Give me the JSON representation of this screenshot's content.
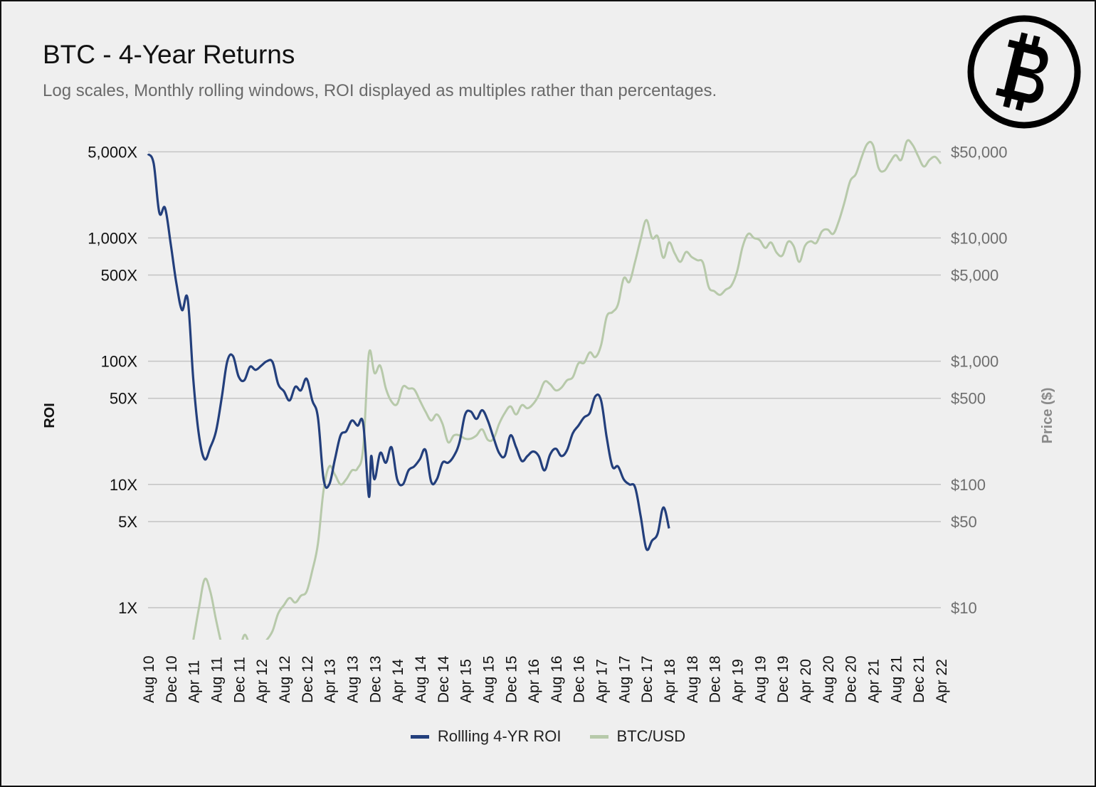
{
  "title": "BTC - 4-Year Returns",
  "subtitle": "Log scales, Monthly rolling windows, ROI displayed as multiples rather than percentages.",
  "logo_icon": "bitcoin-logo-icon",
  "chart_data": {
    "type": "line",
    "y_scale": "log",
    "y2_scale": "log",
    "ylabel": "ROI",
    "y2label": "Price ($)",
    "y_ticks": [
      {
        "v": 5000,
        "label": "5,000X"
      },
      {
        "v": 1000,
        "label": "1,000X"
      },
      {
        "v": 500,
        "label": "500X"
      },
      {
        "v": 100,
        "label": "100X"
      },
      {
        "v": 50,
        "label": "50X"
      },
      {
        "v": 10,
        "label": "10X"
      },
      {
        "v": 5,
        "label": "5X"
      },
      {
        "v": 1,
        "label": "1X"
      }
    ],
    "y2_ticks": [
      {
        "v": 50000,
        "label": "$50,000"
      },
      {
        "v": 10000,
        "label": "$10,000"
      },
      {
        "v": 5000,
        "label": "$5,000"
      },
      {
        "v": 1000,
        "label": "$1,000"
      },
      {
        "v": 500,
        "label": "$500"
      },
      {
        "v": 100,
        "label": "$100"
      },
      {
        "v": 50,
        "label": "$50"
      },
      {
        "v": 10,
        "label": "$10"
      }
    ],
    "x_ticks": [
      "Aug 10",
      "Dec 10",
      "Apr 11",
      "Aug 11",
      "Dec 11",
      "Apr 12",
      "Aug 12",
      "Dec 12",
      "Apr 13",
      "Aug 13",
      "Dec 13",
      "Apr 14",
      "Aug 14",
      "Dec 14",
      "Apr 15",
      "Aug 15",
      "Dec 15",
      "Apr 16",
      "Aug 16",
      "Dec 16",
      "Apr 17",
      "Aug 17",
      "Dec 17",
      "Apr 18",
      "Aug 18",
      "Dec 18",
      "Apr 19",
      "Aug 19",
      "Dec 19",
      "Apr 20",
      "Aug 20",
      "Dec 20",
      "Apr 21",
      "Aug 21",
      "Dec 21",
      "Apr 22"
    ],
    "grid": true,
    "legend_position": "bottom",
    "series": [
      {
        "name": "Rollling 4-YR ROI",
        "color": "#233f7c",
        "axis": "left",
        "points": [
          [
            "Aug 10",
            4800
          ],
          [
            "Sep 10",
            4000
          ],
          [
            "Oct 10",
            1600
          ],
          [
            "Nov 10",
            1750
          ],
          [
            "Dec 10",
            900
          ],
          [
            "Jan 11",
            430
          ],
          [
            "Feb 11",
            260
          ],
          [
            "Mar 11",
            320
          ],
          [
            "Apr 11",
            70
          ],
          [
            "May 11",
            25
          ],
          [
            "Jun 11",
            16
          ],
          [
            "Jul 11",
            20
          ],
          [
            "Aug 11",
            27
          ],
          [
            "Sep 11",
            50
          ],
          [
            "Oct 11",
            100
          ],
          [
            "Nov 11",
            110
          ],
          [
            "Dec 11",
            75
          ],
          [
            "Jan 12",
            70
          ],
          [
            "Feb 12",
            90
          ],
          [
            "Mar 12",
            85
          ],
          [
            "Apr 12",
            92
          ],
          [
            "May 12",
            100
          ],
          [
            "Jun 12",
            98
          ],
          [
            "Jul 12",
            65
          ],
          [
            "Aug 12",
            57
          ],
          [
            "Sep 12",
            48
          ],
          [
            "Oct 12",
            62
          ],
          [
            "Nov 12",
            58
          ],
          [
            "Dec 12",
            72
          ],
          [
            "Jan 13",
            48
          ],
          [
            "Feb 13",
            35
          ],
          [
            "Mar 13",
            11
          ],
          [
            "Apr 13",
            10
          ],
          [
            "May 13",
            16
          ],
          [
            "Jun 13",
            25
          ],
          [
            "Jul 13",
            27
          ],
          [
            "Aug 13",
            33
          ],
          [
            "Sep 13",
            30
          ],
          [
            "Oct 13",
            31
          ],
          [
            "Nov 13",
            8
          ],
          [
            "Nov 13b",
            17
          ],
          [
            "Dec 13",
            11
          ],
          [
            "Jan 14",
            18
          ],
          [
            "Feb 14",
            15
          ],
          [
            "Mar 14",
            20
          ],
          [
            "Apr 14",
            11
          ],
          [
            "May 14",
            10
          ],
          [
            "Jun 14",
            13
          ],
          [
            "Jul 14",
            14
          ],
          [
            "Aug 14",
            16
          ],
          [
            "Sep 14",
            19
          ],
          [
            "Oct 14",
            10.5
          ],
          [
            "Nov 14",
            11
          ],
          [
            "Dec 14",
            15
          ],
          [
            "Jan 15",
            15
          ],
          [
            "Feb 15",
            17
          ],
          [
            "Mar 15",
            22
          ],
          [
            "Apr 15",
            37
          ],
          [
            "May 15",
            39
          ],
          [
            "Jun 15",
            34
          ],
          [
            "Jul 15",
            40
          ],
          [
            "Aug 15",
            33
          ],
          [
            "Sep 15",
            24
          ],
          [
            "Oct 15",
            18
          ],
          [
            "Nov 15",
            17
          ],
          [
            "Dec 15",
            25
          ],
          [
            "Jan 16",
            20
          ],
          [
            "Feb 16",
            15.5
          ],
          [
            "Mar 16",
            17
          ],
          [
            "Apr 16",
            18.5
          ],
          [
            "May 16",
            17
          ],
          [
            "Jun 16",
            13
          ],
          [
            "Jul 16",
            17.5
          ],
          [
            "Aug 16",
            19.5
          ],
          [
            "Sep 16",
            17
          ],
          [
            "Oct 16",
            19
          ],
          [
            "Nov 16",
            26
          ],
          [
            "Dec 16",
            30
          ],
          [
            "Jan 17",
            35
          ],
          [
            "Feb 17",
            38
          ],
          [
            "Mar 17",
            52
          ],
          [
            "Apr 17",
            48
          ],
          [
            "May 17",
            24
          ],
          [
            "Jun 17",
            14
          ],
          [
            "Jul 17",
            14
          ],
          [
            "Aug 17",
            11
          ],
          [
            "Sep 17",
            10
          ],
          [
            "Oct 17",
            9.5
          ],
          [
            "Nov 17",
            5.5
          ],
          [
            "Dec 17",
            3
          ],
          [
            "Jan 18",
            3.5
          ],
          [
            "Feb 18",
            4
          ],
          [
            "Mar 18",
            6.5
          ],
          [
            "Apr 18",
            4.4
          ]
        ]
      },
      {
        "name": "BTC/USD",
        "color": "#b7c9aa",
        "axis": "right",
        "points": [
          [
            "Apr 11",
            5.5
          ],
          [
            "May 11",
            10
          ],
          [
            "Jun 11",
            17
          ],
          [
            "Jul 11",
            13.5
          ],
          [
            "Aug 11",
            8
          ],
          [
            "Sep 11",
            5
          ],
          [
            "Oct 11",
            3.5
          ],
          [
            "Nov 11",
            3
          ],
          [
            "Dec 11",
            4
          ],
          [
            "Jan 12",
            6
          ],
          [
            "Feb 12",
            5
          ],
          [
            "Mar 12",
            5
          ],
          [
            "Apr 12",
            5
          ],
          [
            "May 12",
            5.5
          ],
          [
            "Jun 12",
            6.5
          ],
          [
            "Jul 12",
            9
          ],
          [
            "Aug 12",
            10.5
          ],
          [
            "Sep 12",
            12
          ],
          [
            "Oct 12",
            11
          ],
          [
            "Nov 12",
            12.5
          ],
          [
            "Dec 12",
            13.5
          ],
          [
            "Jan 13",
            20
          ],
          [
            "Feb 13",
            33
          ],
          [
            "Mar 13",
            90
          ],
          [
            "Apr 13",
            140
          ],
          [
            "May 13",
            120
          ],
          [
            "Jun 13",
            100
          ],
          [
            "Jul 13",
            110
          ],
          [
            "Aug 13",
            130
          ],
          [
            "Sep 13",
            135
          ],
          [
            "Oct 13",
            200
          ],
          [
            "Nov 13",
            1150
          ],
          [
            "Dec 13",
            800
          ],
          [
            "Jan 14",
            920
          ],
          [
            "Feb 14",
            600
          ],
          [
            "Mar 14",
            470
          ],
          [
            "Apr 14",
            450
          ],
          [
            "May 14",
            620
          ],
          [
            "Jun 14",
            600
          ],
          [
            "Jul 14",
            590
          ],
          [
            "Aug 14",
            480
          ],
          [
            "Sep 14",
            390
          ],
          [
            "Oct 14",
            330
          ],
          [
            "Nov 14",
            370
          ],
          [
            "Dec 14",
            310
          ],
          [
            "Jan 15",
            220
          ],
          [
            "Feb 15",
            250
          ],
          [
            "Mar 15",
            250
          ],
          [
            "Apr 15",
            235
          ],
          [
            "May 15",
            235
          ],
          [
            "Jun 15",
            250
          ],
          [
            "Jul 15",
            280
          ],
          [
            "Aug 15",
            230
          ],
          [
            "Sep 15",
            235
          ],
          [
            "Oct 15",
            310
          ],
          [
            "Nov 15",
            380
          ],
          [
            "Dec 15",
            430
          ],
          [
            "Jan 16",
            370
          ],
          [
            "Feb 16",
            440
          ],
          [
            "Mar 16",
            415
          ],
          [
            "Apr 16",
            450
          ],
          [
            "May 16",
            530
          ],
          [
            "Jun 16",
            680
          ],
          [
            "Jul 16",
            650
          ],
          [
            "Aug 16",
            580
          ],
          [
            "Sep 16",
            610
          ],
          [
            "Oct 16",
            700
          ],
          [
            "Nov 16",
            740
          ],
          [
            "Dec 16",
            960
          ],
          [
            "Jan 17",
            970
          ],
          [
            "Feb 17",
            1180
          ],
          [
            "Mar 17",
            1080
          ],
          [
            "Apr 17",
            1350
          ],
          [
            "May 17",
            2300
          ],
          [
            "Jun 17",
            2500
          ],
          [
            "Jul 17",
            2900
          ],
          [
            "Aug 17",
            4700
          ],
          [
            "Sep 17",
            4400
          ],
          [
            "Oct 17",
            6400
          ],
          [
            "Nov 17",
            9800
          ],
          [
            "Dec 17",
            14000
          ],
          [
            "Jan 18",
            10000
          ],
          [
            "Feb 18",
            10300
          ],
          [
            "Mar 18",
            6900
          ],
          [
            "Apr 18",
            9200
          ],
          [
            "May 18",
            7500
          ],
          [
            "Jun 18",
            6400
          ],
          [
            "Jul 18",
            7700
          ],
          [
            "Aug 18",
            7000
          ],
          [
            "Sep 18",
            6600
          ],
          [
            "Oct 18",
            6300
          ],
          [
            "Nov 18",
            4000
          ],
          [
            "Dec 18",
            3700
          ],
          [
            "Jan 19",
            3450
          ],
          [
            "Feb 19",
            3800
          ],
          [
            "Mar 19",
            4100
          ],
          [
            "Apr 19",
            5300
          ],
          [
            "May 19",
            8500
          ],
          [
            "Jun 19",
            10800
          ],
          [
            "Jul 19",
            10000
          ],
          [
            "Aug 19",
            9600
          ],
          [
            "Sep 19",
            8300
          ],
          [
            "Oct 19",
            9200
          ],
          [
            "Nov 19",
            7600
          ],
          [
            "Dec 19",
            7200
          ],
          [
            "Jan 20",
            9300
          ],
          [
            "Feb 20",
            8600
          ],
          [
            "Mar 20",
            6400
          ],
          [
            "Apr 20",
            8600
          ],
          [
            "May 20",
            9400
          ],
          [
            "Jun 20",
            9100
          ],
          [
            "Jul 20",
            11300
          ],
          [
            "Aug 20",
            11700
          ],
          [
            "Sep 20",
            10800
          ],
          [
            "Oct 20",
            13800
          ],
          [
            "Nov 20",
            19600
          ],
          [
            "Dec 20",
            29000
          ],
          [
            "Jan 21",
            33000
          ],
          [
            "Feb 21",
            45000
          ],
          [
            "Mar 21",
            58000
          ],
          [
            "Apr 21",
            57000
          ],
          [
            "May 21",
            37000
          ],
          [
            "Jun 21",
            35000
          ],
          [
            "Jul 21",
            41000
          ],
          [
            "Aug 21",
            47000
          ],
          [
            "Sep 21",
            43000
          ],
          [
            "Oct 21",
            61000
          ],
          [
            "Nov 21",
            57000
          ],
          [
            "Dec 21",
            46000
          ],
          [
            "Jan 22",
            38000
          ],
          [
            "Feb 22",
            43000
          ],
          [
            "Mar 22",
            45500
          ],
          [
            "Apr 22",
            40000
          ]
        ]
      }
    ]
  }
}
